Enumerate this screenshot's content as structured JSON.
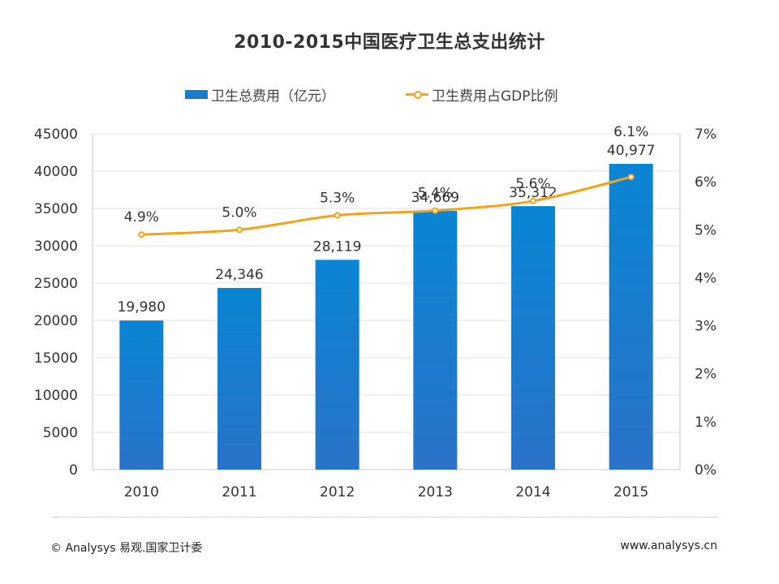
{
  "title": "2010-2015中国医疗卫生总支出统计",
  "legend": {
    "bar_label": "卫生总费用（亿元）",
    "line_label": "卫生费用占GDP比例"
  },
  "footer": {
    "source": "© Analysys 易观.国家卫计委",
    "url": "www.analysys.cn"
  },
  "colors": {
    "bar_top": "#0a85d4",
    "bar_bottom": "#2a73c9",
    "line": "#f5a21b",
    "grid": "#e0e0e0",
    "axis": "#c8c8c8",
    "text": "#333333"
  },
  "chart_data": {
    "type": "bar",
    "title": "2010-2015中国医疗卫生总支出统计",
    "categories": [
      "2010",
      "2011",
      "2012",
      "2013",
      "2014",
      "2015"
    ],
    "series": [
      {
        "name": "卫生总费用（亿元）",
        "type": "bar",
        "axis": "left",
        "values": [
          19980,
          24346,
          28119,
          34669,
          35312,
          40977
        ],
        "labels": [
          "19,980",
          "24,346",
          "28,119",
          "34,669",
          "35,312",
          "40,977"
        ]
      },
      {
        "name": "卫生费用占GDP比例",
        "type": "line",
        "axis": "right",
        "values": [
          4.9,
          5.0,
          5.3,
          5.4,
          5.6,
          6.1
        ],
        "labels": [
          "4.9%",
          "5.0%",
          "5.3%",
          "5.4%",
          "5.6%",
          "6.1%"
        ]
      }
    ],
    "y_left": {
      "min": 0,
      "max": 45000,
      "ticks": [
        "0",
        "5000",
        "10000",
        "15000",
        "20000",
        "25000",
        "30000",
        "35000",
        "40000",
        "45000"
      ]
    },
    "y_right": {
      "min": 0,
      "max": 7,
      "ticks": [
        "0%",
        "1%",
        "2%",
        "3%",
        "4%",
        "5%",
        "6%",
        "7%"
      ]
    },
    "grid": true,
    "legend_position": "top"
  }
}
